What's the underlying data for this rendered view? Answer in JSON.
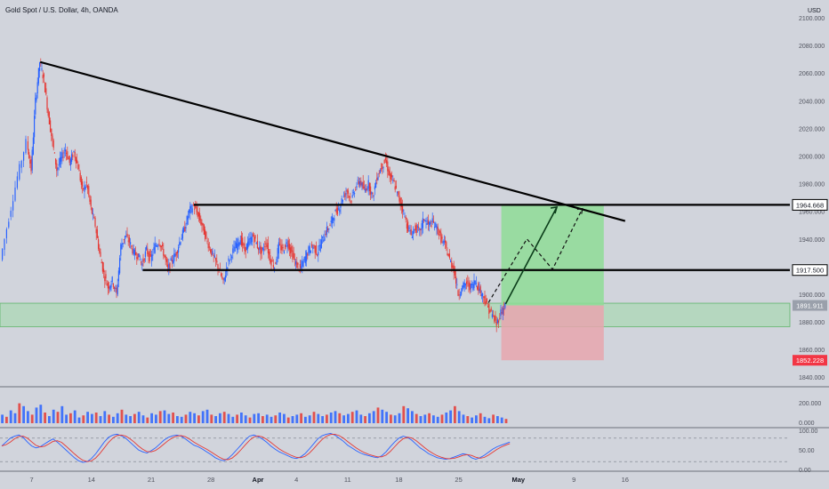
{
  "header": {
    "title": "Gold Spot / U.S. Dollar, 4h, OANDA",
    "currency": "USD"
  },
  "colors": {
    "background": "#d1d4dc",
    "bull": "#2962ff",
    "bear": "#e53935",
    "trendline": "#000000",
    "zone": "#9fd8a8",
    "target": "#8fdc96",
    "stop": "#e8a6ae",
    "stop_tag": "#f23645",
    "stoch_k": "#2962ff",
    "stoch_d": "#e53935"
  },
  "chart_data": {
    "type": "candlestick",
    "symbol": "XAUUSD",
    "timeframe": "4h",
    "y_axis": {
      "range": [
        1835,
        2100
      ],
      "ticks": [
        "1840.000",
        "1860.000",
        "1880.000",
        "1900.000",
        "1920.000",
        "1940.000",
        "1960.000",
        "1980.000",
        "2000.000",
        "2020.000",
        "2040.000",
        "2060.000",
        "2080.000",
        "2100.000"
      ]
    },
    "x_axis": {
      "range": [
        0,
        136
      ],
      "ticks": [
        {
          "label": "7",
          "x": 7
        },
        {
          "label": "14",
          "x": 21
        },
        {
          "label": "21",
          "x": 35
        },
        {
          "label": "28",
          "x": 49
        },
        {
          "label": "Apr",
          "x": 60
        },
        {
          "label": "4",
          "x": 69
        },
        {
          "label": "11",
          "x": 81
        },
        {
          "label": "18",
          "x": 93
        },
        {
          "label": "25",
          "x": 107
        },
        {
          "label": "May",
          "x": 121
        },
        {
          "label": "9",
          "x": 134
        },
        {
          "label": "16",
          "x": 146
        }
      ]
    },
    "price_path": [
      {
        "x": 0,
        "y": 1925
      },
      {
        "x": 2,
        "y": 1955
      },
      {
        "x": 4,
        "y": 1985
      },
      {
        "x": 6,
        "y": 2010
      },
      {
        "x": 7,
        "y": 1990
      },
      {
        "x": 8,
        "y": 2040
      },
      {
        "x": 9,
        "y": 2068
      },
      {
        "x": 10,
        "y": 2055
      },
      {
        "x": 11,
        "y": 2030
      },
      {
        "x": 12,
        "y": 2010
      },
      {
        "x": 13,
        "y": 1990
      },
      {
        "x": 14,
        "y": 1998
      },
      {
        "x": 15,
        "y": 2005
      },
      {
        "x": 16,
        "y": 1995
      },
      {
        "x": 17,
        "y": 2003
      },
      {
        "x": 18,
        "y": 1992
      },
      {
        "x": 19,
        "y": 1975
      },
      {
        "x": 20,
        "y": 1980
      },
      {
        "x": 21,
        "y": 1962
      },
      {
        "x": 22,
        "y": 1950
      },
      {
        "x": 23,
        "y": 1930
      },
      {
        "x": 24,
        "y": 1915
      },
      {
        "x": 25,
        "y": 1905
      },
      {
        "x": 26,
        "y": 1910
      },
      {
        "x": 27,
        "y": 1900
      },
      {
        "x": 28,
        "y": 1935
      },
      {
        "x": 29,
        "y": 1942
      },
      {
        "x": 30,
        "y": 1938
      },
      {
        "x": 31,
        "y": 1930
      },
      {
        "x": 32,
        "y": 1928
      },
      {
        "x": 33,
        "y": 1922
      },
      {
        "x": 34,
        "y": 1932
      },
      {
        "x": 35,
        "y": 1925
      },
      {
        "x": 36,
        "y": 1935
      },
      {
        "x": 37,
        "y": 1938
      },
      {
        "x": 38,
        "y": 1930
      },
      {
        "x": 39,
        "y": 1918
      },
      {
        "x": 40,
        "y": 1925
      },
      {
        "x": 41,
        "y": 1930
      },
      {
        "x": 42,
        "y": 1940
      },
      {
        "x": 43,
        "y": 1948
      },
      {
        "x": 44,
        "y": 1960
      },
      {
        "x": 45,
        "y": 1964
      },
      {
        "x": 46,
        "y": 1958
      },
      {
        "x": 47,
        "y": 1950
      },
      {
        "x": 48,
        "y": 1940
      },
      {
        "x": 49,
        "y": 1932
      },
      {
        "x": 50,
        "y": 1925
      },
      {
        "x": 51,
        "y": 1918
      },
      {
        "x": 52,
        "y": 1908
      },
      {
        "x": 53,
        "y": 1922
      },
      {
        "x": 54,
        "y": 1930
      },
      {
        "x": 55,
        "y": 1935
      },
      {
        "x": 56,
        "y": 1940
      },
      {
        "x": 57,
        "y": 1932
      },
      {
        "x": 58,
        "y": 1938
      },
      {
        "x": 59,
        "y": 1942
      },
      {
        "x": 60,
        "y": 1935
      },
      {
        "x": 61,
        "y": 1930
      },
      {
        "x": 62,
        "y": 1938
      },
      {
        "x": 63,
        "y": 1925
      },
      {
        "x": 64,
        "y": 1920
      },
      {
        "x": 65,
        "y": 1935
      },
      {
        "x": 66,
        "y": 1932
      },
      {
        "x": 67,
        "y": 1938
      },
      {
        "x": 68,
        "y": 1930
      },
      {
        "x": 69,
        "y": 1922
      },
      {
        "x": 70,
        "y": 1918
      },
      {
        "x": 71,
        "y": 1925
      },
      {
        "x": 72,
        "y": 1932
      },
      {
        "x": 73,
        "y": 1935
      },
      {
        "x": 74,
        "y": 1930
      },
      {
        "x": 75,
        "y": 1938
      },
      {
        "x": 76,
        "y": 1945
      },
      {
        "x": 77,
        "y": 1950
      },
      {
        "x": 78,
        "y": 1958
      },
      {
        "x": 79,
        "y": 1962
      },
      {
        "x": 80,
        "y": 1970
      },
      {
        "x": 81,
        "y": 1975
      },
      {
        "x": 82,
        "y": 1968
      },
      {
        "x": 83,
        "y": 1978
      },
      {
        "x": 84,
        "y": 1982
      },
      {
        "x": 85,
        "y": 1975
      },
      {
        "x": 86,
        "y": 1980
      },
      {
        "x": 87,
        "y": 1970
      },
      {
        "x": 88,
        "y": 1985
      },
      {
        "x": 89,
        "y": 1992
      },
      {
        "x": 90,
        "y": 1997
      },
      {
        "x": 91,
        "y": 1985
      },
      {
        "x": 92,
        "y": 1980
      },
      {
        "x": 93,
        "y": 1970
      },
      {
        "x": 94,
        "y": 1962
      },
      {
        "x": 95,
        "y": 1950
      },
      {
        "x": 96,
        "y": 1943
      },
      {
        "x": 97,
        "y": 1948
      },
      {
        "x": 98,
        "y": 1945
      },
      {
        "x": 99,
        "y": 1955
      },
      {
        "x": 100,
        "y": 1950
      },
      {
        "x": 101,
        "y": 1952
      },
      {
        "x": 102,
        "y": 1948
      },
      {
        "x": 103,
        "y": 1940
      },
      {
        "x": 104,
        "y": 1935
      },
      {
        "x": 105,
        "y": 1925
      },
      {
        "x": 106,
        "y": 1918
      },
      {
        "x": 107,
        "y": 1900
      },
      {
        "x": 108,
        "y": 1905
      },
      {
        "x": 109,
        "y": 1908
      },
      {
        "x": 110,
        "y": 1905
      },
      {
        "x": 111,
        "y": 1910
      },
      {
        "x": 112,
        "y": 1903
      },
      {
        "x": 113,
        "y": 1898
      },
      {
        "x": 114,
        "y": 1890
      },
      {
        "x": 115,
        "y": 1885
      },
      {
        "x": 116,
        "y": 1878
      },
      {
        "x": 117,
        "y": 1887
      },
      {
        "x": 118,
        "y": 1891.9
      }
    ],
    "trendline": {
      "from": {
        "x": 9,
        "y": 2068
      },
      "to": {
        "x": 146,
        "y": 1953
      }
    },
    "levels": [
      {
        "y": 1964.668,
        "label": "1964.668",
        "x_start": 45
      },
      {
        "y": 1917.5,
        "label": "1917.500",
        "x_start": 33
      }
    ],
    "support_zone": {
      "y_low": 1876.5,
      "y_high": 1893.5
    },
    "long_position": {
      "x_start": 117,
      "x_end": 141,
      "entry": 1891.911,
      "target": 1964.668,
      "stop": 1852.228,
      "entry_label": "1891.911",
      "stop_label": "1852.228"
    },
    "projection_solid": [
      {
        "x": 118,
        "y": 1893
      },
      {
        "x": 130,
        "y": 1963
      }
    ],
    "projection_dashed": [
      {
        "x": 114,
        "y": 1894
      },
      {
        "x": 123,
        "y": 1940
      },
      {
        "x": 129,
        "y": 1918
      },
      {
        "x": 136,
        "y": 1962
      }
    ],
    "volume": {
      "ticks": [
        "200.000",
        "0.000"
      ],
      "bars": [
        60,
        45,
        90,
        70,
        140,
        120,
        85,
        60,
        110,
        130,
        75,
        50,
        95,
        80,
        120,
        60,
        70,
        90,
        40,
        55,
        80,
        65,
        75,
        50,
        85,
        60,
        45,
        70,
        95,
        60,
        50,
        65,
        80,
        55,
        40,
        70,
        60,
        85,
        90,
        65,
        75,
        50,
        45,
        60,
        80,
        70,
        55,
        85,
        95,
        60,
        50,
        70,
        80,
        65,
        45,
        60,
        75,
        55,
        40,
        65,
        70,
        50,
        60,
        45,
        55,
        75,
        65,
        40,
        50,
        60,
        70,
        45,
        55,
        80,
        65,
        50,
        60,
        75,
        85,
        70,
        55,
        65,
        80,
        90,
        60,
        50,
        70,
        85,
        110,
        95,
        80,
        60,
        55,
        70,
        120,
        105,
        85,
        65,
        50,
        60,
        70,
        55,
        45,
        60,
        75,
        90,
        120,
        85,
        60,
        50,
        40,
        55,
        70,
        45,
        35,
        60,
        50,
        40,
        30
      ]
    },
    "stochastic": {
      "ticks": [
        "100.00",
        "50.00",
        "0.00"
      ],
      "bands": [
        80,
        20
      ],
      "k": [
        60,
        70,
        80,
        85,
        88,
        82,
        70,
        60,
        55,
        58,
        65,
        72,
        78,
        70,
        60,
        50,
        40,
        30,
        22,
        18,
        20,
        28,
        40,
        55,
        70,
        82,
        88,
        90,
        86,
        80,
        70,
        60,
        50,
        45,
        42,
        48,
        55,
        65,
        75,
        82,
        86,
        88,
        85,
        78,
        70,
        62,
        58,
        52,
        45,
        38,
        30,
        25,
        22,
        28,
        38,
        50,
        62,
        75,
        85,
        88,
        84,
        78,
        70,
        60,
        52,
        45,
        40,
        35,
        30,
        28,
        32,
        40,
        52,
        65,
        78,
        86,
        90,
        92,
        88,
        80,
        72,
        62,
        55,
        48,
        42,
        38,
        35,
        32,
        30,
        35,
        45,
        58,
        70,
        80,
        85,
        82,
        75,
        65,
        55,
        48,
        40,
        35,
        30,
        28,
        26,
        28,
        32,
        36,
        40,
        38,
        30,
        26,
        30,
        36,
        44,
        52,
        58,
        62,
        66,
        70
      ]
    }
  }
}
